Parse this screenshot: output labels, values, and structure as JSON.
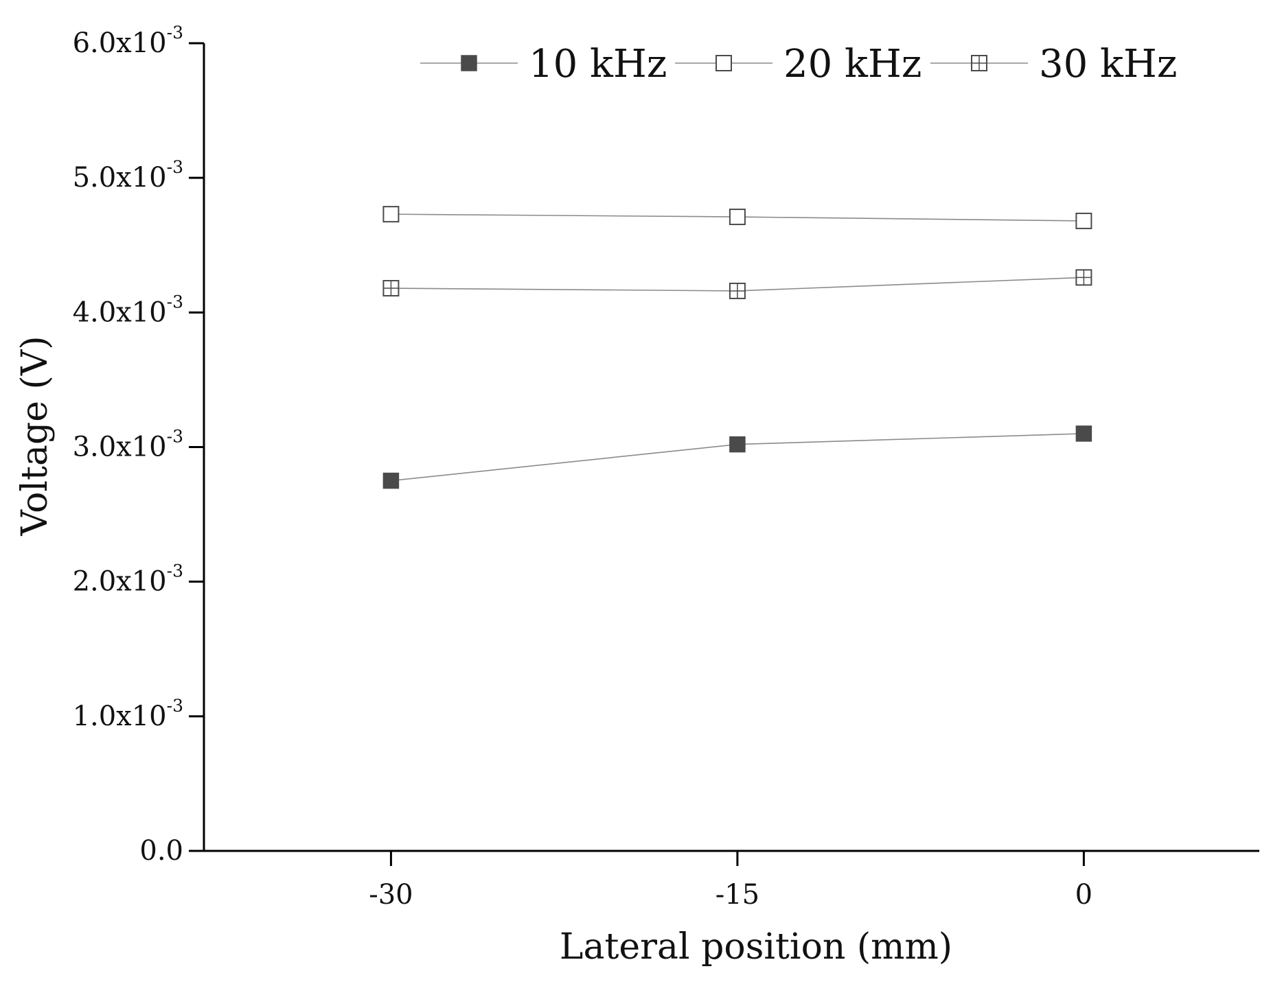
{
  "chart_data": {
    "type": "line",
    "title": "",
    "xlabel": "Lateral position (mm)",
    "ylabel": "Voltage (V)",
    "x": [
      -30,
      -15,
      0
    ],
    "x_ticks": [
      -30,
      -15,
      0
    ],
    "x_tick_labels": [
      "-30",
      "-15",
      "0"
    ],
    "xlim": [
      -38.1,
      7.6
    ],
    "ylim": [
      0,
      0.006
    ],
    "y_ticks": [
      0,
      0.001,
      0.002,
      0.003,
      0.004,
      0.005,
      0.006
    ],
    "y_tick_labels": [
      {
        "mantissa": "0.0",
        "exponent": ""
      },
      {
        "mantissa": "1.0x10",
        "exponent": "-3"
      },
      {
        "mantissa": "2.0x10",
        "exponent": "-3"
      },
      {
        "mantissa": "3.0x10",
        "exponent": "-3"
      },
      {
        "mantissa": "4.0x10",
        "exponent": "-3"
      },
      {
        "mantissa": "5.0x10",
        "exponent": "-3"
      },
      {
        "mantissa": "6.0x10",
        "exponent": "-3"
      }
    ],
    "grid": false,
    "legend_position": "top",
    "series": [
      {
        "name": "10 kHz",
        "marker": "filled-square",
        "values": [
          0.00275,
          0.00302,
          0.0031
        ]
      },
      {
        "name": "20 kHz",
        "marker": "open-square",
        "values": [
          0.00473,
          0.00471,
          0.00468
        ]
      },
      {
        "name": "30 kHz",
        "marker": "crossed-square",
        "values": [
          0.00418,
          0.00416,
          0.00426
        ]
      }
    ],
    "colors": {
      "axis": "#000000",
      "line": "#8a8a8a",
      "marker_fill_dark": "#4a4a4a",
      "marker_stroke": "#4a4a4a",
      "marker_open_fill": "#ffffff"
    }
  }
}
